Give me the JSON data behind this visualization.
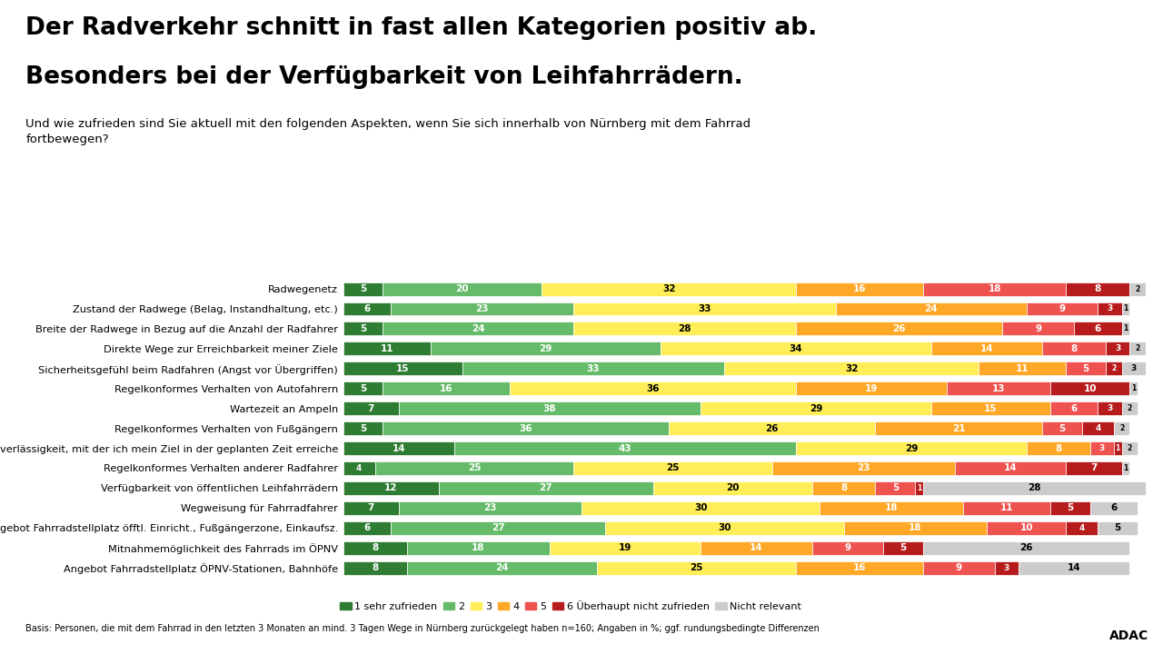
{
  "title_line1": "Der Radverkehr schnitt in fast allen Kategorien positiv ab.",
  "title_line2": "Besonders bei der Verfügbarkeit von Leihfahrrädern.",
  "subtitle": "Und wie zufrieden sind Sie aktuell mit den folgenden Aspekten, wenn Sie sich innerhalb von Nürnberg mit dem Fahrrad\nfortbewegen?",
  "footnote": "Basis: Personen, die mit dem Fahrrad in den letzten 3 Monaten an mind. 3 Tagen Wege in Nürnberg zurückgelegt haben n=160; Angaben in %; ggf. rundungsbedingte Differenzen",
  "categories": [
    "Radwegenetz",
    "Zustand der Radwege (Belag, Instandhaltung, etc.)",
    "Breite der Radwege in Bezug auf die Anzahl der Radfahrer",
    "Direkte Wege zur Erreichbarkeit meiner Ziele",
    "Sicherheitsgefühl beim Radfahren (Angst vor Übergriffen)",
    "Regelkonformes Verhalten von Autofahrern",
    "Wartezeit an Ampeln",
    "Regelkonformes Verhalten von Fußgängern",
    "Zuverlässigkeit, mit der ich mein Ziel in der geplanten Zeit erreiche",
    "Regelkonformes Verhalten anderer Radfahrer",
    "Verfügbarkeit von öffentlichen Leihfahrrädern",
    "Wegweisung für Fahrradfahrer",
    "Angebot Fahrradstellplatz öfftl. Einricht., Fußgängerzone, Einkaufsz.",
    "Mitnahmemöglichkeit des Fahrrads im ÖPNV",
    "Angebot Fahrradstellplatz ÖPNV-Stationen, Bahnhöfe"
  ],
  "data": [
    [
      5,
      20,
      32,
      16,
      18,
      8,
      2
    ],
    [
      6,
      23,
      33,
      24,
      9,
      3,
      1
    ],
    [
      5,
      24,
      28,
      26,
      9,
      6,
      1
    ],
    [
      11,
      29,
      34,
      14,
      8,
      3,
      2
    ],
    [
      15,
      33,
      32,
      11,
      5,
      2,
      3
    ],
    [
      5,
      16,
      36,
      19,
      13,
      10,
      1
    ],
    [
      7,
      38,
      29,
      15,
      6,
      3,
      2
    ],
    [
      5,
      36,
      26,
      21,
      5,
      4,
      2
    ],
    [
      14,
      43,
      29,
      8,
      3,
      1,
      2
    ],
    [
      4,
      25,
      25,
      23,
      14,
      7,
      1
    ],
    [
      12,
      27,
      20,
      8,
      5,
      1,
      28
    ],
    [
      7,
      23,
      30,
      18,
      11,
      5,
      6
    ],
    [
      6,
      27,
      30,
      18,
      10,
      4,
      5
    ],
    [
      8,
      18,
      19,
      14,
      9,
      5,
      26
    ],
    [
      8,
      24,
      25,
      16,
      9,
      3,
      14
    ]
  ],
  "colors": [
    "#2e7d32",
    "#66bb6a",
    "#ffee58",
    "#ffa726",
    "#ef5350",
    "#b71c1c",
    "#cccccc"
  ],
  "legend_labels": [
    "1 sehr zufrieden",
    "2",
    "3",
    "4",
    "5",
    "6 Überhaupt nicht zufrieden",
    "Nicht relevant"
  ],
  "background_color": "#ffffff",
  "icon_color": "#F5A800"
}
